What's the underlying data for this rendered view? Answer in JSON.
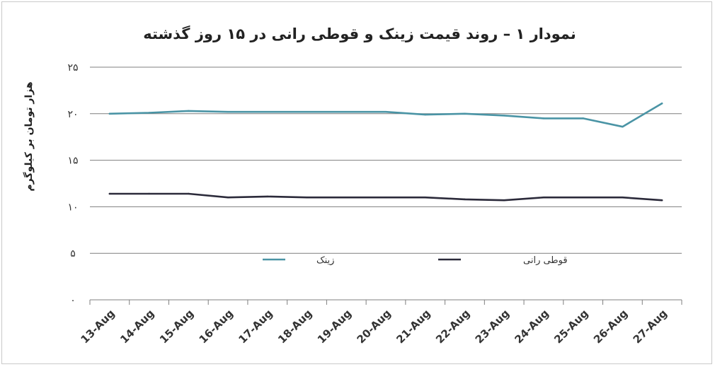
{
  "chart_data": {
    "type": "line",
    "title": "نمودار ۱ – روند قیمت زینک و قوطی رانی در ۱۵ روز گذشته",
    "ylabel": "هزار تومان بر کیلوگرم",
    "xlabel": "",
    "categories": [
      "13-Aug",
      "14-Aug",
      "15-Aug",
      "16-Aug",
      "17-Aug",
      "18-Aug",
      "19-Aug",
      "20-Aug",
      "21-Aug",
      "22-Aug",
      "23-Aug",
      "24-Aug",
      "25-Aug",
      "26-Aug",
      "27-Aug"
    ],
    "yticks": [
      {
        "value": 0,
        "label": "۰"
      },
      {
        "value": 5,
        "label": "۵"
      },
      {
        "value": 10,
        "label": "۱۰"
      },
      {
        "value": 15,
        "label": "۱۵"
      },
      {
        "value": 20,
        "label": "۲۰"
      },
      {
        "value": 25,
        "label": "۲۵"
      }
    ],
    "ylim": [
      0,
      25
    ],
    "grid": true,
    "legend_position": "bottom-center",
    "series": [
      {
        "name": "زینک",
        "color": "#4a94a5",
        "values": [
          20.0,
          20.1,
          20.3,
          20.2,
          20.2,
          20.2,
          20.2,
          20.2,
          19.9,
          20.0,
          19.8,
          19.5,
          19.5,
          18.6,
          21.1
        ]
      },
      {
        "name": "قوطی رانی",
        "color": "#2b2a3a",
        "values": [
          11.4,
          11.4,
          11.4,
          11.0,
          11.1,
          11.0,
          11.0,
          11.0,
          11.0,
          10.8,
          10.7,
          11.0,
          11.0,
          11.0,
          10.7
        ]
      }
    ]
  }
}
